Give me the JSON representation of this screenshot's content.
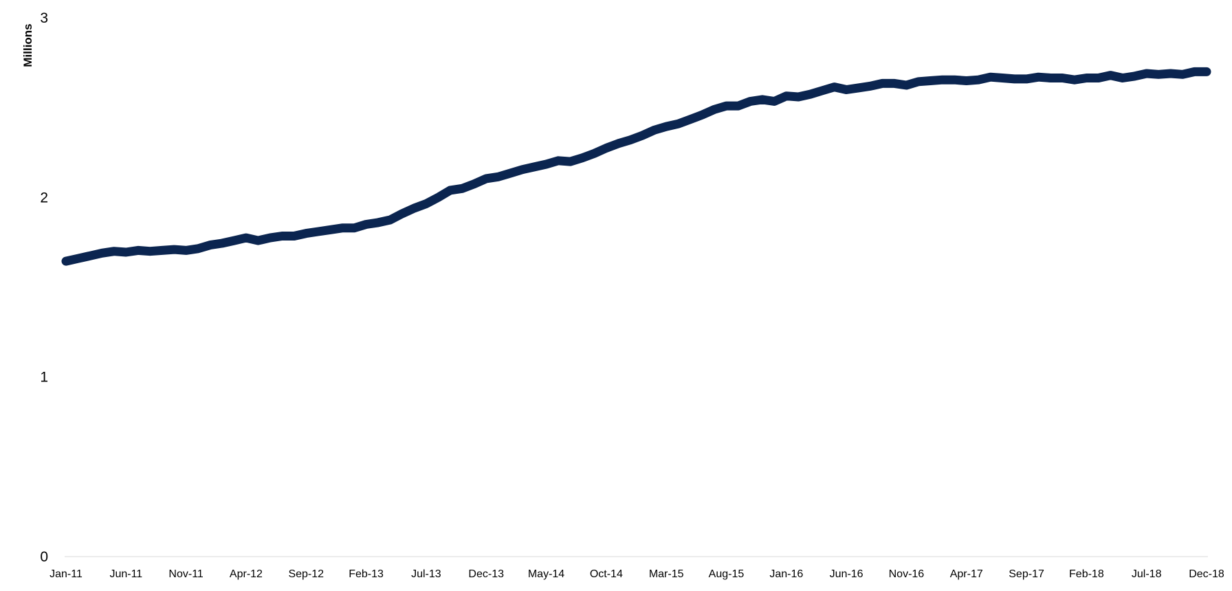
{
  "chart_data": {
    "type": "line",
    "title": "",
    "xlabel": "",
    "ylabel": "Millions",
    "ylim": [
      0,
      3
    ],
    "yticks": [
      0,
      1,
      2,
      3
    ],
    "grid": false,
    "legend": "none",
    "start_month": "2011-01",
    "x_tick_labels": [
      "Jan-11",
      "Jun-11",
      "Nov-11",
      "Apr-12",
      "Sep-12",
      "Feb-13",
      "Jul-13",
      "Dec-13",
      "May-14",
      "Oct-14",
      "Mar-15",
      "Aug-15",
      "Jan-16",
      "Jun-16",
      "Nov-16",
      "Apr-17",
      "Sep-17",
      "Feb-18",
      "Jul-18",
      "Dec-18"
    ],
    "x_tick_step_months": 5,
    "series": [
      {
        "name": "",
        "color": "#0b2550",
        "values": [
          1.645,
          1.66,
          1.675,
          1.69,
          1.7,
          1.695,
          1.705,
          1.7,
          1.705,
          1.71,
          1.705,
          1.715,
          1.735,
          1.745,
          1.76,
          1.775,
          1.76,
          1.775,
          1.785,
          1.785,
          1.8,
          1.81,
          1.82,
          1.83,
          1.83,
          1.85,
          1.86,
          1.875,
          1.91,
          1.94,
          1.965,
          2.0,
          2.04,
          2.05,
          2.075,
          2.105,
          2.115,
          2.135,
          2.155,
          2.17,
          2.185,
          2.205,
          2.2,
          2.22,
          2.245,
          2.275,
          2.3,
          2.32,
          2.345,
          2.375,
          2.395,
          2.41,
          2.435,
          2.46,
          2.49,
          2.51,
          2.51,
          2.535,
          2.545,
          2.535,
          2.565,
          2.56,
          2.575,
          2.595,
          2.615,
          2.6,
          2.61,
          2.62,
          2.635,
          2.635,
          2.625,
          2.645,
          2.65,
          2.655,
          2.655,
          2.65,
          2.655,
          2.67,
          2.665,
          2.66,
          2.66,
          2.67,
          2.665,
          2.665,
          2.655,
          2.665,
          2.665,
          2.68,
          2.665,
          2.675,
          2.69,
          2.685,
          2.69,
          2.685,
          2.7,
          2.7
        ]
      }
    ]
  }
}
